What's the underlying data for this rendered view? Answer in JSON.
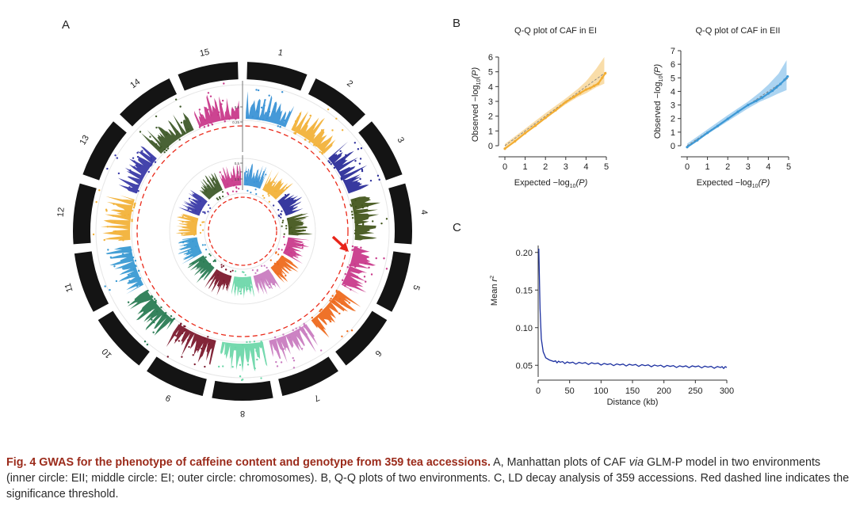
{
  "panels": {
    "a": {
      "label": "A"
    },
    "b": {
      "label": "B"
    },
    "c": {
      "label": "C"
    }
  },
  "colors": {
    "chromosomes": [
      "#3b93d6",
      "#f2b23a",
      "#2c2e9a",
      "#44571e",
      "#c93a8b",
      "#ee6a1d",
      "#c97cc0",
      "#6ed7aa",
      "#7c1a2e",
      "#2a7c54",
      "#3a9ad3",
      "#f2b23a",
      "#3a3aa8",
      "#3f5a2a",
      "#c93a8b"
    ],
    "ring": "#141414",
    "threshold": "#ea2a1a",
    "arrow": "#e8251a",
    "qq_left": "#f2ad33",
    "qq_left_band": "#f8d79a",
    "qq_right": "#3d98d5",
    "qq_right_band": "#9dcdef",
    "ld_line": "#1b2fa0",
    "caption_bold": "#9b2b1b"
  },
  "chromosome_labels": [
    "1",
    "2",
    "3",
    "4",
    "5",
    "6",
    "7",
    "8",
    "9",
    "10",
    "11",
    "12",
    "13",
    "14",
    "15"
  ],
  "circos_axis_labels": [
    "0.5",
    "0.25",
    "1.5",
    "1",
    "0.5"
  ],
  "chart_data": [
    {
      "id": "qq-ei",
      "type": "scatter",
      "title": "Q-Q plot of CAF in EI",
      "xlabel_main": "Expected −log",
      "xlabel_sub": "10",
      "xlabel_tail": "(P)",
      "ylabel_main": "Observed −log",
      "ylabel_sub": "10",
      "ylabel_tail": "(P)",
      "xlim": [
        0,
        5
      ],
      "ylim": [
        0,
        6
      ],
      "xticks": [
        "0",
        "1",
        "2",
        "3",
        "4",
        "5"
      ],
      "yticks": [
        "0",
        "1",
        "2",
        "3",
        "4",
        "5",
        "6"
      ],
      "band_upper": [
        [
          0,
          0.12
        ],
        [
          1,
          1.15
        ],
        [
          2,
          2.2
        ],
        [
          3,
          3.2
        ],
        [
          3.6,
          3.85
        ],
        [
          4,
          4.35
        ],
        [
          4.5,
          5.2
        ],
        [
          4.9,
          6.0
        ]
      ],
      "band_lower": [
        [
          0,
          -0.12
        ],
        [
          1,
          0.88
        ],
        [
          2,
          1.82
        ],
        [
          3,
          2.8
        ],
        [
          3.6,
          3.3
        ],
        [
          4,
          3.55
        ],
        [
          4.5,
          3.95
        ],
        [
          4.9,
          4.2
        ]
      ],
      "points": [
        [
          0,
          -0.2
        ],
        [
          0.5,
          0.3
        ],
        [
          1,
          0.85
        ],
        [
          1.5,
          1.35
        ],
        [
          2,
          1.88
        ],
        [
          2.5,
          2.4
        ],
        [
          3,
          2.95
        ],
        [
          3.4,
          3.3
        ],
        [
          3.7,
          3.55
        ],
        [
          4,
          3.8
        ],
        [
          4.2,
          3.9
        ],
        [
          4.4,
          4.05
        ],
        [
          4.6,
          4.2
        ],
        [
          4.8,
          4.6
        ],
        [
          4.95,
          4.9
        ]
      ]
    },
    {
      "id": "qq-eii",
      "type": "scatter",
      "title": "Q-Q plot of CAF in EII",
      "xlabel_main": "Expected −log",
      "xlabel_sub": "10",
      "xlabel_tail": "(P)",
      "ylabel_main": "Observed −log",
      "ylabel_sub": "10",
      "ylabel_tail": "(P)",
      "xlim": [
        0,
        5
      ],
      "ylim": [
        0,
        7
      ],
      "xticks": [
        "0",
        "1",
        "2",
        "3",
        "4",
        "5"
      ],
      "yticks": [
        "0",
        "1",
        "2",
        "3",
        "4",
        "5",
        "6",
        "7"
      ],
      "band_upper": [
        [
          0,
          0.15
        ],
        [
          1,
          1.2
        ],
        [
          2,
          2.25
        ],
        [
          3,
          3.25
        ],
        [
          3.6,
          3.95
        ],
        [
          4,
          4.5
        ],
        [
          4.5,
          5.3
        ],
        [
          4.9,
          6.3
        ]
      ],
      "band_lower": [
        [
          0,
          -0.15
        ],
        [
          1,
          0.85
        ],
        [
          2,
          1.8
        ],
        [
          3,
          2.75
        ],
        [
          3.6,
          3.25
        ],
        [
          4,
          3.5
        ],
        [
          4.5,
          3.85
        ],
        [
          4.9,
          4.1
        ]
      ],
      "points": [
        [
          0,
          -0.1
        ],
        [
          0.5,
          0.4
        ],
        [
          1,
          0.95
        ],
        [
          1.5,
          1.45
        ],
        [
          2,
          1.98
        ],
        [
          2.5,
          2.5
        ],
        [
          3,
          3.0
        ],
        [
          3.4,
          3.3
        ],
        [
          3.7,
          3.55
        ],
        [
          4,
          3.85
        ],
        [
          4.2,
          4.05
        ],
        [
          4.4,
          4.3
        ],
        [
          4.6,
          4.55
        ],
        [
          4.8,
          4.85
        ],
        [
          4.95,
          5.1
        ]
      ]
    },
    {
      "id": "ld-decay",
      "type": "line",
      "title": "",
      "xlabel": "Distance (kb)",
      "ylabel_main": "Mean ",
      "ylabel_sup": "r",
      "ylabel_exp": "2",
      "xlim": [
        0,
        300
      ],
      "ylim": [
        0.045,
        0.205
      ],
      "xticks": [
        "0",
        "50",
        "100",
        "150",
        "200",
        "250",
        "300"
      ],
      "yticks": [
        "0.05",
        "0.10",
        "0.15",
        "0.20"
      ],
      "x": [
        1,
        3,
        5,
        8,
        12,
        18,
        25,
        35,
        50,
        70,
        90,
        110,
        130,
        150,
        170,
        190,
        210,
        230,
        250,
        270,
        290,
        300
      ],
      "y": [
        0.205,
        0.125,
        0.085,
        0.068,
        0.06,
        0.057,
        0.055,
        0.054,
        0.053,
        0.0525,
        0.052,
        0.051,
        0.0505,
        0.05,
        0.0495,
        0.049,
        0.0485,
        0.048,
        0.048,
        0.0475,
        0.047,
        0.047
      ]
    }
  ],
  "caption": {
    "bold": "Fig. 4  GWAS for the phenotype of caffeine content and genotype from 359 tea accessions.",
    "part1": "  A, Manhattan plots of CAF ",
    "via": "via",
    "part2": " GLM-P model in two environments (inner circle: EII; middle circle: EI; outer circle: chromosomes).  B, Q-Q plots of two environments.  C, LD decay analysis of 359 accessions.  Red dashed line indicates the significance threshold."
  }
}
